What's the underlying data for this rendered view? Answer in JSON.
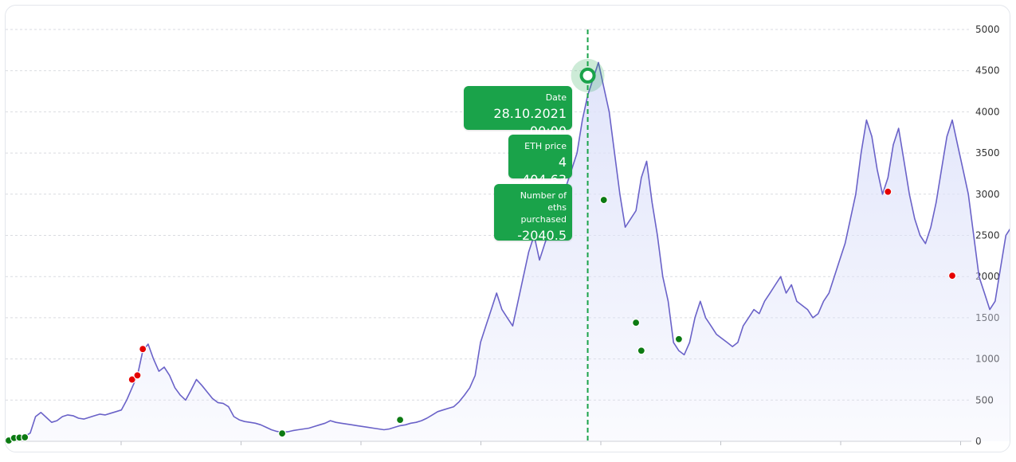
{
  "chart_data": {
    "type": "area",
    "ylim": [
      0,
      5000
    ],
    "y_ticks": [
      "0",
      "500",
      "1000",
      "1500",
      "2000",
      "2500",
      "3000",
      "3500",
      "4000",
      "4500",
      "5000"
    ],
    "grid": true,
    "y_axis_side": "right",
    "colors": {
      "line": "#6a62c8",
      "fill": "#dfe3fa",
      "buy": "#0c7a12",
      "sell": "#e50000",
      "tooltip": "#1aa34a",
      "crosshair": "#1aa34a"
    },
    "series": [
      {
        "values": [
          10,
          25,
          45,
          60,
          100,
          300,
          350,
          290,
          230,
          250,
          300,
          320,
          310,
          280,
          270,
          290,
          310,
          330,
          320,
          340,
          360,
          380,
          500,
          650,
          800,
          1100,
          1180,
          1000,
          850,
          900,
          800,
          650,
          560,
          500,
          620,
          750,
          680,
          600,
          520,
          470,
          460,
          420,
          300,
          260,
          240,
          230,
          220,
          200,
          170,
          140,
          120,
          110,
          115,
          130,
          140,
          150,
          160,
          180,
          200,
          220,
          250,
          230,
          220,
          210,
          200,
          190,
          180,
          170,
          160,
          150,
          140,
          150,
          170,
          190,
          200,
          220,
          230,
          250,
          280,
          320,
          360,
          380,
          400,
          420,
          480,
          560,
          650,
          800,
          1200,
          1400,
          1600,
          1800,
          1600,
          1500,
          1400,
          1700,
          2000,
          2300,
          2500,
          2200,
          2400,
          2600,
          2800,
          2700,
          3100,
          3300,
          3500,
          3900,
          4200,
          4400,
          4600,
          4300,
          4000,
          3500,
          3000,
          2600,
          2700,
          2800,
          3200,
          3400,
          2900,
          2500,
          2000,
          1700,
          1200,
          1100,
          1050,
          1200,
          1500,
          1700,
          1500,
          1400,
          1300,
          1250,
          1200,
          1150,
          1200,
          1400,
          1500,
          1600,
          1550,
          1700,
          1800,
          1900,
          2000,
          1800,
          1900,
          1700,
          1650,
          1600,
          1500,
          1550,
          1700,
          1800,
          2000,
          2200,
          2400,
          2700,
          3000,
          3500,
          3900,
          3700,
          3300,
          3000,
          3200,
          3600,
          3800,
          3400,
          3000,
          2700,
          2500,
          2400,
          2600,
          2900,
          3300,
          3700,
          3900,
          3600,
          3300,
          3000,
          2500,
          2000,
          1800,
          1600,
          1700,
          2100,
          2500,
          2600
        ]
      }
    ],
    "buy_markers": [
      [
        0,
        10
      ],
      [
        1,
        40
      ],
      [
        2,
        45
      ],
      [
        3,
        48
      ],
      [
        51,
        95
      ],
      [
        73,
        260
      ],
      [
        111,
        2930
      ],
      [
        117,
        1440
      ],
      [
        118,
        1100
      ],
      [
        125,
        1240
      ]
    ],
    "sell_markers": [
      [
        23,
        750
      ],
      [
        24,
        800
      ],
      [
        25,
        1120
      ],
      [
        164,
        3030
      ],
      [
        176,
        2010
      ]
    ],
    "highlight_index": 108
  },
  "tooltip": {
    "date_label": "Date",
    "date_value": "28.10.2021 00:00",
    "price_label": "ETH price",
    "price_value": "4 404.63",
    "count_label_1": "Number of eths",
    "count_label_2": "purchased",
    "count_value": "-2040.5"
  }
}
